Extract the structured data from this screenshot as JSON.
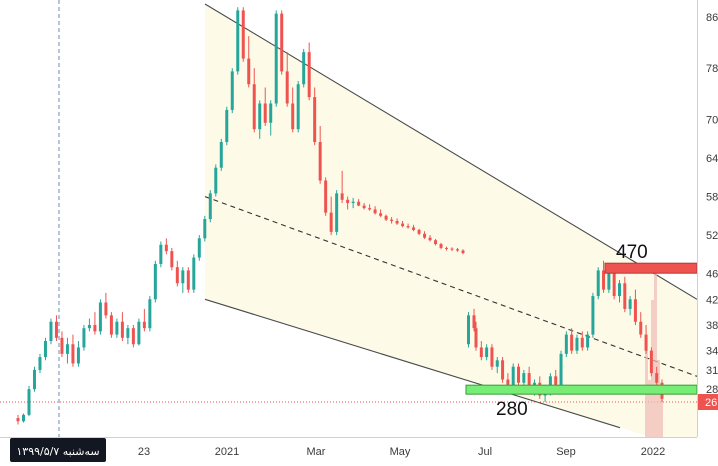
{
  "chart_data": {
    "type": "candlestick",
    "title": "",
    "x_axis": {
      "ticks": [
        "23",
        "2021",
        "Mar",
        "May",
        "Jul",
        "Sep",
        "2022"
      ]
    },
    "y_axis": {
      "scale": "linear",
      "range": [
        2600,
        8800
      ],
      "ticks": [
        "86",
        "78",
        "70",
        "64",
        "58",
        "52",
        "46",
        "42",
        "38",
        "34",
        "31",
        "28",
        "26"
      ],
      "tick_values": [
        8600,
        7800,
        7000,
        6400,
        5800,
        5200,
        4600,
        4200,
        3800,
        3400,
        3100,
        2800,
        2600
      ]
    },
    "current_price": {
      "label": "26",
      "value": 2600,
      "color": "#ef5350"
    },
    "cursor_date": "سه‌شنبه ۱۳۹۹/۵/۷",
    "annotations": [
      {
        "label": "470",
        "value": 4700,
        "kind": "resistance",
        "color": "#ef5350"
      },
      {
        "label": "280",
        "value": 2800,
        "kind": "support",
        "color": "#76ee76"
      }
    ],
    "channel": {
      "type": "descending parallel channel",
      "upper": [
        {
          "x": "2020-12",
          "y": 8800
        },
        {
          "x": "2022-02",
          "y": 4200
        }
      ],
      "middle": [
        {
          "x": "2020-12",
          "y": 5800
        },
        {
          "x": "2022-02",
          "y": 3000
        }
      ],
      "lower": [
        {
          "x": "2020-12",
          "y": 4200
        },
        {
          "x": "2022-01",
          "y": 2200
        }
      ]
    },
    "colors": {
      "up": "#26a69a",
      "down": "#ef5350",
      "channel_fill": "#fdfbe8",
      "volume": "#f0b9b6"
    },
    "series": [
      {
        "values": [
          [
            2350,
            2400,
            2250,
            2300
          ],
          [
            2300,
            2420,
            2280,
            2400
          ],
          [
            2400,
            2850,
            2380,
            2800
          ],
          [
            2800,
            3150,
            2760,
            3100
          ],
          [
            3100,
            3350,
            3050,
            3300
          ],
          [
            3300,
            3600,
            3250,
            3550
          ],
          [
            3550,
            3900,
            3500,
            3850
          ],
          [
            3850,
            3950,
            3550,
            3600
          ],
          [
            3600,
            3700,
            3300,
            3350
          ],
          [
            3350,
            3600,
            3200,
            3500
          ],
          [
            3500,
            3650,
            3150,
            3200
          ],
          [
            3200,
            3550,
            3150,
            3450
          ],
          [
            3450,
            3800,
            3400,
            3750
          ],
          [
            3750,
            3900,
            3700,
            3800
          ],
          [
            3800,
            4000,
            3650,
            3700
          ],
          [
            3700,
            4200,
            3650,
            4150
          ],
          [
            4150,
            4300,
            3900,
            3950
          ],
          [
            3950,
            4000,
            3600,
            3650
          ],
          [
            3650,
            3900,
            3600,
            3850
          ],
          [
            3850,
            4000,
            3550,
            3600
          ],
          [
            3600,
            3800,
            3500,
            3750
          ],
          [
            3750,
            3800,
            3450,
            3500
          ],
          [
            3500,
            3900,
            3480,
            3850
          ],
          [
            3850,
            4050,
            3700,
            3750
          ],
          [
            3750,
            4250,
            3700,
            4200
          ],
          [
            4200,
            4800,
            4150,
            4750
          ],
          [
            4750,
            5100,
            4700,
            5050
          ],
          [
            5050,
            5150,
            4900,
            4950
          ],
          [
            4950,
            5000,
            4650,
            4700
          ],
          [
            4700,
            4800,
            4400,
            4450
          ],
          [
            4450,
            4700,
            4300,
            4650
          ],
          [
            4650,
            4700,
            4300,
            4350
          ],
          [
            4350,
            4900,
            4300,
            4850
          ],
          [
            4850,
            5200,
            4800,
            5150
          ],
          [
            5150,
            5500,
            5100,
            5450
          ],
          [
            5450,
            5900,
            5400,
            5850
          ],
          [
            5850,
            6300,
            5800,
            6250
          ],
          [
            6250,
            6700,
            6200,
            6650
          ],
          [
            6650,
            7200,
            6600,
            7150
          ],
          [
            7150,
            7800,
            7100,
            7750
          ],
          [
            7750,
            8750,
            7700,
            8700
          ],
          [
            8700,
            8750,
            7900,
            7950
          ],
          [
            7950,
            8300,
            7500,
            7550
          ],
          [
            7550,
            7800,
            6800,
            6850
          ],
          [
            6850,
            7300,
            6700,
            7250
          ],
          [
            7250,
            7500,
            6900,
            6950
          ],
          [
            6950,
            7300,
            6750,
            7250
          ],
          [
            7250,
            8700,
            7200,
            8650
          ],
          [
            8650,
            8700,
            7700,
            7750
          ],
          [
            7750,
            8050,
            7200,
            7250
          ],
          [
            7250,
            7500,
            6800,
            6850
          ],
          [
            6850,
            7600,
            6800,
            7550
          ],
          [
            7550,
            8100,
            7500,
            8050
          ],
          [
            8050,
            8200,
            7300,
            7350
          ],
          [
            7350,
            7500,
            6600,
            6650
          ],
          [
            6650,
            6900,
            6000,
            6050
          ],
          [
            6050,
            6100,
            5500,
            5550
          ],
          [
            5550,
            5800,
            5200,
            5250
          ],
          [
            5250,
            5900,
            5200,
            5850
          ],
          [
            5850,
            6200,
            5700,
            5750
          ],
          [
            5750,
            5800,
            5600,
            5700
          ],
          [
            5700,
            5780,
            5620,
            5720
          ],
          [
            5720,
            5760,
            5650,
            5660
          ],
          [
            5660,
            5700,
            5600,
            5620
          ],
          [
            5620,
            5680,
            5580,
            5600
          ],
          [
            5600,
            5650,
            5520,
            5540
          ],
          [
            5540,
            5600,
            5480,
            5500
          ],
          [
            5500,
            5520,
            5420,
            5440
          ],
          [
            5440,
            5480,
            5380,
            5420
          ],
          [
            5420,
            5460,
            5360,
            5380
          ],
          [
            5380,
            5420,
            5320,
            5340
          ],
          [
            5340,
            5380,
            5300,
            5320
          ],
          [
            5320,
            5360,
            5260,
            5280
          ],
          [
            5280,
            5300,
            5200,
            5220
          ],
          [
            5220,
            5260,
            5140,
            5160
          ],
          [
            5160,
            5200,
            5100,
            5120
          ],
          [
            5120,
            5140,
            5040,
            5060
          ],
          [
            5060,
            5080,
            4980,
            5000
          ],
          [
            5000,
            5020,
            4960,
            4990
          ],
          [
            4990,
            5010,
            4950,
            4980
          ],
          [
            4980,
            5000,
            4940,
            4960
          ],
          [
            4960,
            4980,
            4900,
            4920
          ],
          [
            3500,
            4000,
            3450,
            3950
          ],
          [
            3950,
            4050,
            3700,
            3750
          ],
          [
            3750,
            3850,
            3400,
            3450
          ],
          [
            3450,
            3550,
            3250,
            3300
          ],
          [
            3300,
            3500,
            3250,
            3450
          ],
          [
            3450,
            3500,
            3100,
            3150
          ],
          [
            3150,
            3300,
            3050,
            3250
          ],
          [
            3250,
            3300,
            2900,
            2950
          ],
          [
            2950,
            3050,
            2750,
            2800
          ],
          [
            2800,
            3200,
            2750,
            3150
          ],
          [
            3150,
            3200,
            2850,
            2900
          ],
          [
            2900,
            3100,
            2850,
            3050
          ],
          [
            3050,
            3150,
            2750,
            2800
          ],
          [
            2800,
            2950,
            2700,
            2900
          ],
          [
            2900,
            3000,
            2650,
            2700
          ],
          [
            2700,
            2800,
            2600,
            2750
          ],
          [
            2750,
            3050,
            2700,
            3000
          ],
          [
            3000,
            3100,
            2800,
            2850
          ],
          [
            2850,
            3400,
            2800,
            3350
          ],
          [
            3350,
            3700,
            3300,
            3650
          ],
          [
            3650,
            3750,
            3350,
            3400
          ],
          [
            3400,
            3650,
            3350,
            3600
          ],
          [
            3600,
            3700,
            3400,
            3450
          ],
          [
            3450,
            3700,
            3400,
            3650
          ],
          [
            3650,
            4300,
            3600,
            4250
          ],
          [
            4250,
            4700,
            4200,
            4650
          ],
          [
            4650,
            4800,
            4300,
            4350
          ],
          [
            4350,
            4700,
            4300,
            4650
          ],
          [
            4650,
            4750,
            4200,
            4250
          ],
          [
            4250,
            4500,
            4150,
            4450
          ],
          [
            4450,
            4550,
            4000,
            4050
          ],
          [
            4050,
            4250,
            3950,
            4200
          ],
          [
            4200,
            4350,
            3800,
            3850
          ],
          [
            3850,
            4000,
            3600,
            3650
          ],
          [
            3650,
            3800,
            3350,
            3400
          ],
          [
            3400,
            3450,
            3000,
            3050
          ],
          [
            3050,
            3150,
            2850,
            2900
          ],
          [
            2900,
            2950,
            2600,
            2650
          ]
        ]
      }
    ]
  }
}
